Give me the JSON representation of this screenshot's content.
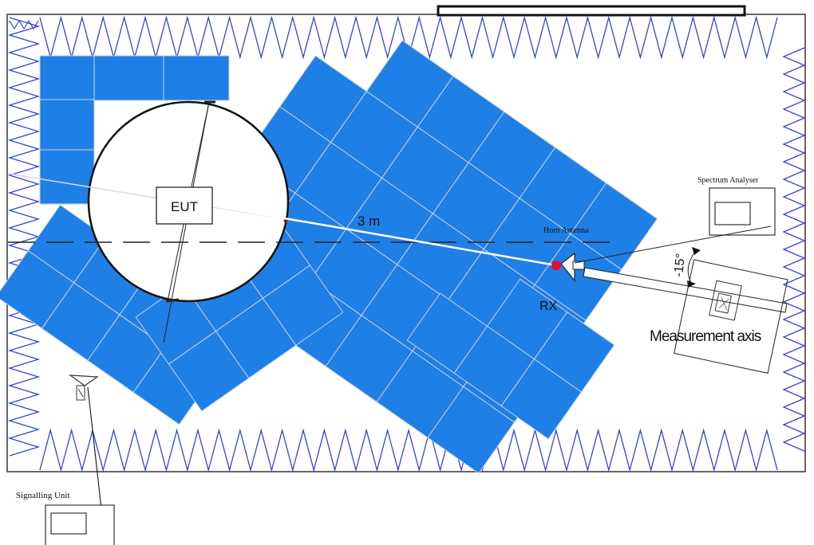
{
  "diagram": {
    "labels": {
      "eut": "EUT",
      "distance": "3 m",
      "horn_antenna": "Horn Antenna",
      "rx": "RX",
      "spectrum_analyser": "Spectrum Analyser",
      "angle": "-15°",
      "measurement_axis": "Measurement axis",
      "signalling_unit": "Signalling Unit"
    },
    "colors": {
      "absorber_blue": "#1e7fe6",
      "wall_zigzag": "#3344cc",
      "receive_point": "#e0102a",
      "chamber_outline": "#333333"
    },
    "icons": {
      "horn_antenna": "horn-antenna-icon",
      "ceiling_antenna": "antenna-icon",
      "spectrum_analyser": "instrument-icon",
      "signalling_unit": "instrument-icon"
    }
  }
}
